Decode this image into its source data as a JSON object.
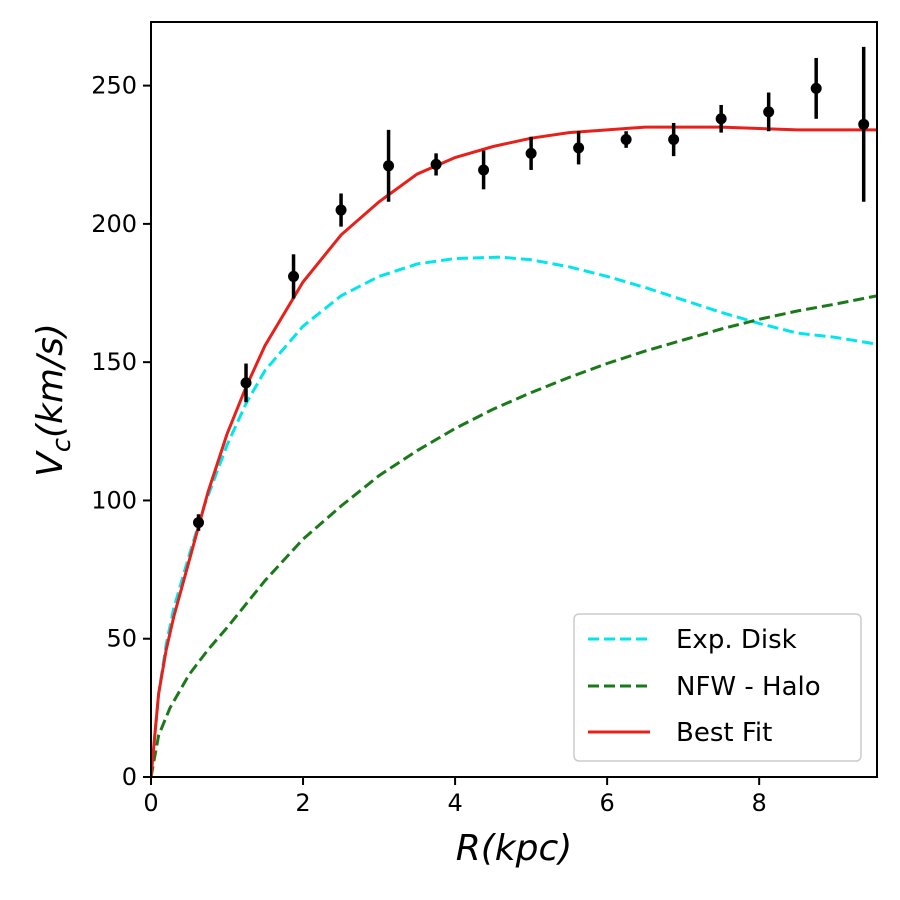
{
  "chart_data": {
    "type": "line",
    "xlabel": "R(kpc)",
    "ylabel_main": "V",
    "ylabel_sub": "c",
    "ylabel_tail": "(km/s)",
    "xlim": [
      0,
      9.55
    ],
    "ylim": [
      0,
      273
    ],
    "xticks": [
      0,
      2,
      4,
      6,
      8
    ],
    "yticks": [
      0,
      50,
      100,
      150,
      200,
      250
    ],
    "grid": false,
    "legend_position": "bottom-right",
    "observed": {
      "points": [
        {
          "x": 0.625,
          "y": 92,
          "err": 3
        },
        {
          "x": 1.25,
          "y": 142.5,
          "err": 7
        },
        {
          "x": 1.875,
          "y": 181,
          "err": 8
        },
        {
          "x": 2.5,
          "y": 205,
          "err": 6
        },
        {
          "x": 3.125,
          "y": 221,
          "err": 13
        },
        {
          "x": 3.75,
          "y": 221.5,
          "err": 4
        },
        {
          "x": 4.375,
          "y": 219.5,
          "err": 7
        },
        {
          "x": 5.0,
          "y": 225.5,
          "err": 6
        },
        {
          "x": 5.625,
          "y": 227.5,
          "err": 6
        },
        {
          "x": 6.25,
          "y": 230.5,
          "err": 3
        },
        {
          "x": 6.875,
          "y": 230.5,
          "err": 6
        },
        {
          "x": 7.5,
          "y": 238,
          "err": 5
        },
        {
          "x": 8.125,
          "y": 240.5,
          "err": 7
        },
        {
          "x": 8.75,
          "y": 249,
          "err": 11
        },
        {
          "x": 9.375,
          "y": 236,
          "err": 28
        }
      ],
      "color": "#000000"
    },
    "series": [
      {
        "name": "Exp. Disk",
        "style": "dashed",
        "color": "#00e5ee",
        "x": [
          0,
          0.1,
          0.2,
          0.3,
          0.5,
          0.7,
          1.0,
          1.25,
          1.5,
          2.0,
          2.5,
          3.0,
          3.5,
          4.0,
          4.6,
          5.0,
          5.5,
          6.0,
          6.5,
          7.0,
          7.5,
          8.0,
          8.5,
          9.0,
          9.55
        ],
        "y": [
          0,
          30,
          48,
          61,
          80,
          98,
          120,
          135,
          147,
          163,
          174,
          181,
          185.5,
          187.5,
          188,
          187,
          184.5,
          181,
          177,
          172.5,
          168,
          164,
          160.5,
          159,
          156.5
        ]
      },
      {
        "name": "NFW - Halo",
        "style": "dashed",
        "color": "#1a7a1a",
        "x": [
          0,
          0.1,
          0.25,
          0.5,
          0.75,
          1.0,
          1.5,
          2.0,
          2.5,
          3.0,
          3.5,
          4.0,
          4.5,
          5.0,
          5.5,
          6.0,
          6.5,
          7.0,
          7.5,
          8.0,
          8.5,
          9.0,
          9.55
        ],
        "y": [
          0,
          15,
          25,
          37,
          46,
          54,
          71,
          86,
          98,
          109,
          118,
          126,
          133,
          139,
          144.5,
          149.5,
          154,
          158,
          162,
          165.5,
          168.5,
          171,
          174
        ]
      },
      {
        "name": "Best Fit",
        "style": "solid",
        "color": "#e8201a",
        "x": [
          0,
          0.1,
          0.2,
          0.3,
          0.5,
          0.75,
          1.0,
          1.25,
          1.5,
          2.0,
          2.5,
          3.0,
          3.5,
          4.0,
          4.5,
          5.0,
          5.5,
          6.0,
          6.5,
          7.0,
          7.5,
          8.0,
          8.5,
          9.0,
          9.55
        ],
        "y": [
          0,
          30,
          46,
          58,
          78,
          103,
          124,
          141,
          156,
          179,
          196,
          208,
          218,
          224,
          228,
          231,
          233,
          234,
          235,
          235,
          235,
          234.5,
          234,
          234,
          234
        ]
      }
    ]
  }
}
